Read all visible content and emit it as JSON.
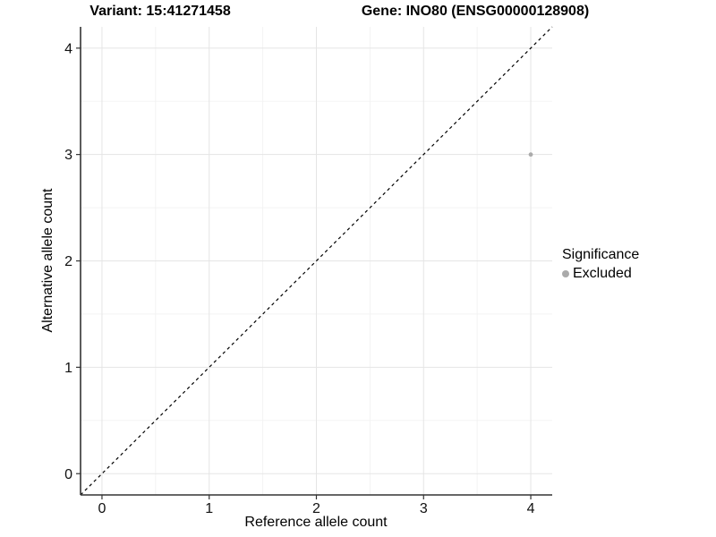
{
  "titles": {
    "variant": "Variant: 15:41271458",
    "gene": "Gene: INO80 (ENSG00000128908)"
  },
  "chart_data": {
    "type": "scatter",
    "xlabel": "Reference allele count",
    "ylabel": "Alternative allele count",
    "xlim": [
      -0.2,
      4.2
    ],
    "ylim": [
      -0.2,
      4.2
    ],
    "x_ticks": [
      0,
      1,
      2,
      3,
      4
    ],
    "y_ticks": [
      0,
      1,
      2,
      3,
      4
    ],
    "minor_ticks": [
      0.5,
      1.5,
      2.5,
      3.5
    ],
    "grid": "major and minor gridlines on white panel",
    "points": [
      {
        "x": 4,
        "y": 3,
        "significance": "Excluded"
      }
    ],
    "reference_line": {
      "equation": "y = x",
      "style": "dashed",
      "color": "#000000"
    },
    "legend": {
      "title": "Significance",
      "position": "right",
      "entries": [
        {
          "label": "Excluded",
          "color": "#aaaaaa"
        }
      ]
    }
  },
  "colors": {
    "point": "#ababab",
    "major_grid": "#e5e5e5",
    "minor_grid": "#f2f2f2",
    "axis_line": "#333333",
    "tick_mark": "#333333",
    "tick_label": "#111111",
    "dashed_line": "#000000",
    "background": "#ffffff"
  }
}
